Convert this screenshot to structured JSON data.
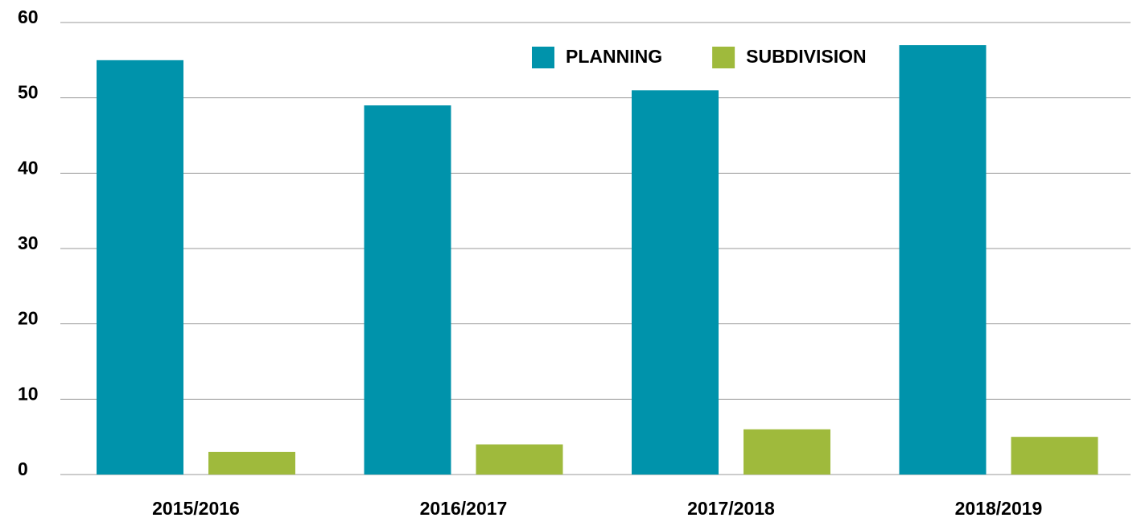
{
  "chart_data": {
    "type": "bar",
    "categories": [
      "2015/2016",
      "2016/2017",
      "2017/2018",
      "2018/2019"
    ],
    "series": [
      {
        "name": "PLANNING",
        "color": "#0093ab",
        "values": [
          55,
          49,
          51,
          57
        ]
      },
      {
        "name": "SUBDIVISION",
        "color": "#9fba3c",
        "values": [
          3,
          4,
          6,
          5
        ]
      }
    ],
    "ylim": [
      0,
      60
    ],
    "yticks": [
      0,
      10,
      20,
      30,
      40,
      50,
      60
    ],
    "grid": true,
    "legend": "top"
  }
}
